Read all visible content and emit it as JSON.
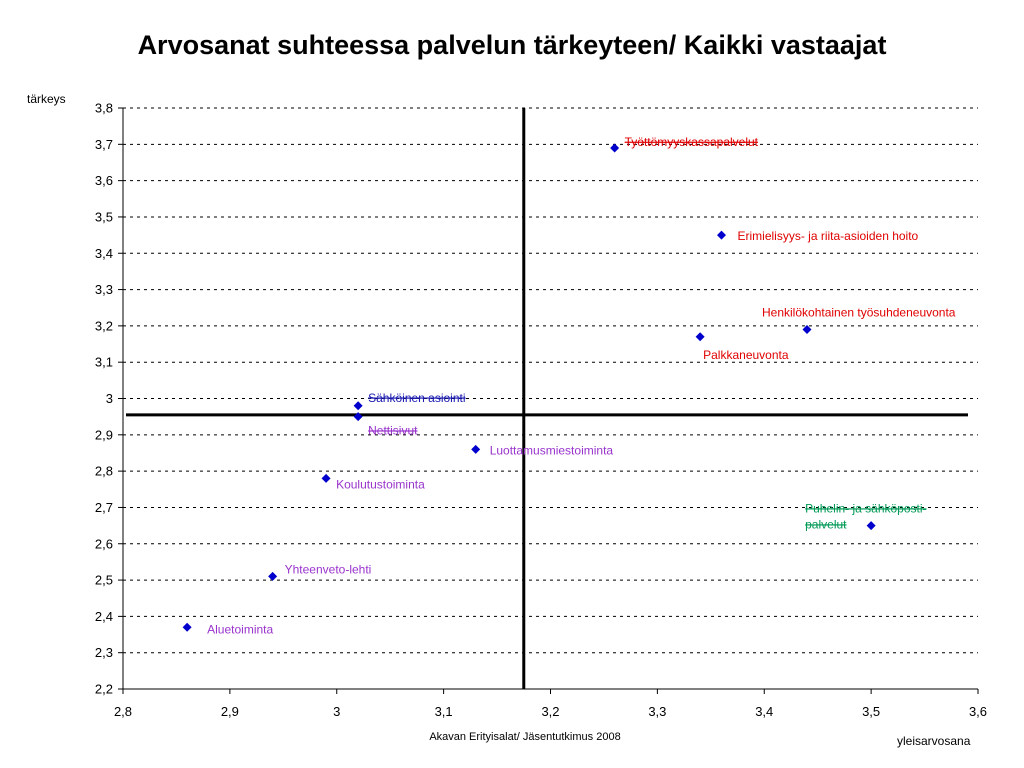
{
  "chart_data": {
    "type": "scatter",
    "title": "Arvosanat suhteessa palvelun tärkeyteen/ Kaikki vastaajat",
    "xlabel": "yleisarvosana",
    "ylabel": "tärkeys",
    "footer": "Akavan Erityisalat/ Jäsentutkimus 2008",
    "xlim": [
      2.8,
      3.6
    ],
    "ylim": [
      2.2,
      3.8
    ],
    "x_ticks": [
      "2,8",
      "2,9",
      "3",
      "3,1",
      "3,2",
      "3,3",
      "3,4",
      "3,5",
      "3,6"
    ],
    "y_ticks": [
      "2,2",
      "2,3",
      "2,4",
      "2,5",
      "2,6",
      "2,7",
      "2,8",
      "2,9",
      "3",
      "3,1",
      "3,2",
      "3,3",
      "3,4",
      "3,5",
      "3,6",
      "3,7",
      "3,8"
    ],
    "grid": "horizontal dashed",
    "reference_lines": {
      "x": 3.175,
      "y": 2.955
    },
    "marker_color": "#0000cc",
    "points": [
      {
        "label": "Työttömyyskassapalvelut",
        "x": 3.26,
        "y": 3.69,
        "color": "#e00000"
      },
      {
        "label": "Erimielisyys- ja riita-asioiden hoito",
        "x": 3.36,
        "y": 3.45,
        "color": "#e00000"
      },
      {
        "label": "Henkilökohtainen työsuhdeneuvonta",
        "x": 3.44,
        "y": 3.19,
        "color": "#e00000"
      },
      {
        "label": "Palkkaneuvonta",
        "x": 3.34,
        "y": 3.17,
        "color": "#e00000"
      },
      {
        "label": "Sähköinen asiointi",
        "x": 3.02,
        "y": 2.98,
        "color": "#1a1ab0"
      },
      {
        "label": "Nettisivut",
        "x": 3.02,
        "y": 2.95,
        "color": "#9933cc"
      },
      {
        "label": "Luottamusmiestoiminta",
        "x": 3.13,
        "y": 2.86,
        "color": "#9933cc"
      },
      {
        "label": "Koulutustoiminta",
        "x": 2.99,
        "y": 2.78,
        "color": "#9933cc"
      },
      {
        "label": "Puhelin- ja sähköposti-palvelut",
        "lines": [
          "Puhelin- ja sähköposti-",
          "palvelut"
        ],
        "x": 3.5,
        "y": 2.65,
        "color": "#009955"
      },
      {
        "label": "Yhteenveto-lehti",
        "x": 2.94,
        "y": 2.51,
        "color": "#9933cc"
      },
      {
        "label": "Aluetoiminta",
        "x": 2.86,
        "y": 2.37,
        "color": "#9933cc"
      }
    ]
  }
}
